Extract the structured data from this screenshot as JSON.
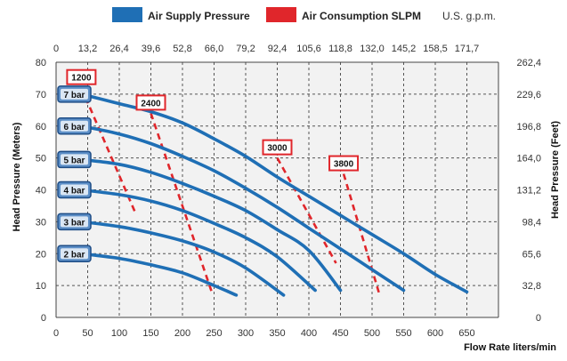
{
  "legend": {
    "items": [
      {
        "label": "Air Supply Pressure",
        "color": "#1f6fb5"
      },
      {
        "label": "Air Consumption SLPM",
        "color": "#e0262b"
      }
    ],
    "unit_label": "U.S. g.p.m."
  },
  "chart_data": {
    "type": "line",
    "xlabel": "Flow Rate liters/min",
    "ylabel": "Head Pressure (Meters)",
    "y2label": "Head Pressure (Feet)",
    "x2label": "U.S. g.p.m.",
    "xlim": [
      0,
      700
    ],
    "ylim": [
      0,
      80
    ],
    "x_ticks": [
      0,
      50,
      100,
      150,
      200,
      250,
      300,
      350,
      400,
      450,
      500,
      550,
      600,
      650
    ],
    "x_tick_labels": [
      "0",
      "50",
      "100",
      "150",
      "200",
      "250",
      "300",
      "350",
      "400",
      "450",
      "500",
      "550",
      "600",
      "650"
    ],
    "y_ticks": [
      0,
      10,
      20,
      30,
      40,
      50,
      60,
      70,
      80
    ],
    "y_tick_labels": [
      "0",
      "10",
      "20",
      "30",
      "40",
      "50",
      "60",
      "70",
      "80"
    ],
    "top_tick_labels": [
      "0",
      "13,2",
      "26,4",
      "39,6",
      "52,8",
      "66,0",
      "79,2",
      "92,4",
      "105,6",
      "118,8",
      "132,0",
      "145,2",
      "158,5",
      "171,7"
    ],
    "right_tick_labels": [
      "0",
      "32,8",
      "65,6",
      "98,4",
      "131,2",
      "164,0",
      "196,8",
      "229,6",
      "262,4"
    ],
    "grid": true,
    "series": [
      {
        "name": "7 bar",
        "x": [
          40,
          100,
          150,
          200,
          250,
          300,
          350,
          400,
          450,
          500,
          550,
          600,
          650
        ],
        "y": [
          70,
          67,
          64.5,
          61,
          56,
          50.5,
          44,
          38,
          32,
          26,
          20,
          13.5,
          8
        ]
      },
      {
        "name": "6 bar",
        "x": [
          40,
          100,
          150,
          200,
          250,
          300,
          350,
          400,
          450,
          500,
          550
        ],
        "y": [
          60,
          57.5,
          54.5,
          50.5,
          46,
          40.5,
          34.5,
          28,
          21.5,
          15,
          8.5
        ]
      },
      {
        "name": "5 bar",
        "x": [
          40,
          100,
          150,
          200,
          250,
          300,
          350,
          400,
          450
        ],
        "y": [
          49.5,
          48,
          45.5,
          42,
          38,
          33.5,
          27.5,
          21,
          8.5
        ]
      },
      {
        "name": "4 bar",
        "x": [
          40,
          100,
          150,
          200,
          250,
          300,
          350,
          410
        ],
        "y": [
          40,
          38.5,
          36.5,
          33.5,
          29.5,
          25,
          19,
          8.5
        ]
      },
      {
        "name": "3 bar",
        "x": [
          40,
          100,
          150,
          200,
          250,
          300,
          360
        ],
        "y": [
          30,
          28.5,
          26.5,
          24,
          20.5,
          15.5,
          7
        ]
      },
      {
        "name": "2 bar",
        "x": [
          40,
          100,
          150,
          200,
          250,
          285
        ],
        "y": [
          20,
          18.5,
          16.5,
          14,
          10,
          7
        ]
      }
    ],
    "consumption_lines": [
      {
        "name": "1200",
        "x": [
          40,
          125
        ],
        "y": [
          72,
          33
        ]
      },
      {
        "name": "2400",
        "x": [
          150,
          248
        ],
        "y": [
          64,
          7
        ]
      },
      {
        "name": "3000",
        "x": [
          350,
          443
        ],
        "y": [
          50,
          17
        ]
      },
      {
        "name": "3800",
        "x": [
          455,
          512
        ],
        "y": [
          45,
          7
        ]
      }
    ]
  }
}
